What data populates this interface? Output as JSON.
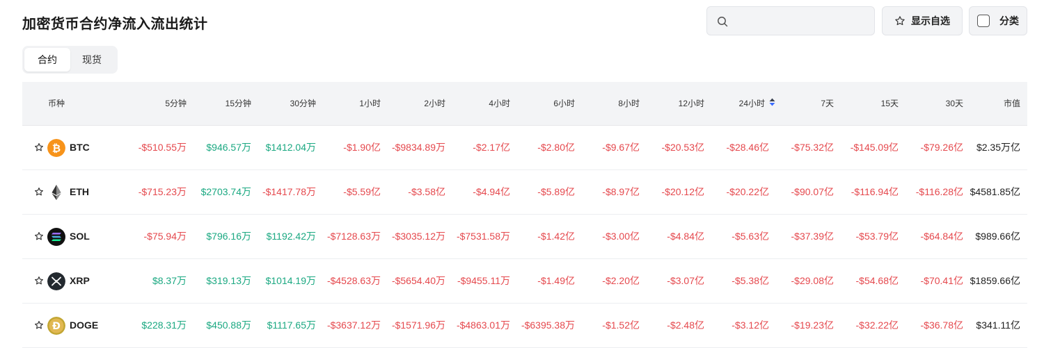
{
  "page_title": "加密货币合约净流入流出统计",
  "search": {
    "placeholder": ""
  },
  "buttons": {
    "favorites_label": "显示自选",
    "category_label": "分类"
  },
  "tabs": [
    {
      "label": "合约",
      "active": true
    },
    {
      "label": "现货",
      "active": false
    }
  ],
  "colors": {
    "negative": "#e5484d",
    "positive": "#1aa881",
    "sort_active": "#3b6cff"
  },
  "table": {
    "sorted_column": "24小时",
    "columns": [
      "币种",
      "5分钟",
      "15分钟",
      "30分钟",
      "1小时",
      "2小时",
      "4小时",
      "6小时",
      "8小时",
      "12小时",
      "24小时",
      "7天",
      "15天",
      "30天",
      "市值"
    ],
    "rows": [
      {
        "symbol": "BTC",
        "icon": "bitcoin-icon",
        "values": [
          "-$510.55万",
          "$946.57万",
          "$1412.04万",
          "-$1.90亿",
          "-$9834.89万",
          "-$2.17亿",
          "-$2.80亿",
          "-$9.67亿",
          "-$20.53亿",
          "-$28.46亿",
          "-$75.32亿",
          "-$145.09亿",
          "-$79.26亿"
        ],
        "market_cap": "$2.35万亿"
      },
      {
        "symbol": "ETH",
        "icon": "ethereum-icon",
        "values": [
          "-$715.23万",
          "$2703.74万",
          "-$1417.78万",
          "-$5.59亿",
          "-$3.58亿",
          "-$4.94亿",
          "-$5.89亿",
          "-$8.97亿",
          "-$20.12亿",
          "-$20.22亿",
          "-$90.07亿",
          "-$116.94亿",
          "-$116.28亿"
        ],
        "market_cap": "$4581.85亿"
      },
      {
        "symbol": "SOL",
        "icon": "solana-icon",
        "values": [
          "-$75.94万",
          "$796.16万",
          "$1192.42万",
          "-$7128.63万",
          "-$3035.12万",
          "-$7531.58万",
          "-$1.42亿",
          "-$3.00亿",
          "-$4.84亿",
          "-$5.63亿",
          "-$37.39亿",
          "-$53.79亿",
          "-$64.84亿"
        ],
        "market_cap": "$989.66亿"
      },
      {
        "symbol": "XRP",
        "icon": "xrp-icon",
        "values": [
          "$8.37万",
          "$319.13万",
          "$1014.19万",
          "-$4528.63万",
          "-$5654.40万",
          "-$9455.11万",
          "-$1.49亿",
          "-$2.20亿",
          "-$3.07亿",
          "-$5.38亿",
          "-$29.08亿",
          "-$54.68亿",
          "-$70.41亿"
        ],
        "market_cap": "$1859.66亿"
      },
      {
        "symbol": "DOGE",
        "icon": "dogecoin-icon",
        "values": [
          "$228.31万",
          "$450.88万",
          "$1117.65万",
          "-$3637.12万",
          "-$1571.96万",
          "-$4863.01万",
          "-$6395.38万",
          "-$1.52亿",
          "-$2.48亿",
          "-$3.12亿",
          "-$19.23亿",
          "-$32.22亿",
          "-$36.78亿"
        ],
        "market_cap": "$341.11亿"
      }
    ]
  }
}
